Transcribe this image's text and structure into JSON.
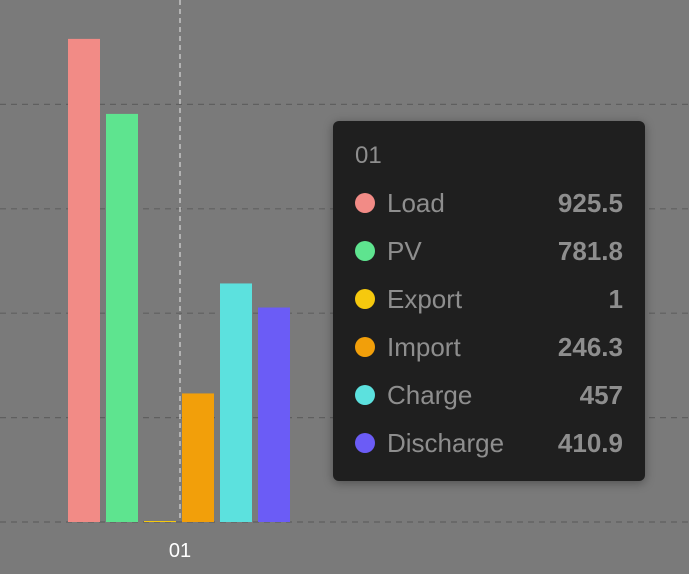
{
  "chart_data": {
    "type": "bar",
    "categories": [
      "01"
    ],
    "series": [
      {
        "name": "Load",
        "color": "#f28b86",
        "values": [
          925.5
        ]
      },
      {
        "name": "PV",
        "color": "#5ee48f",
        "values": [
          781.8
        ]
      },
      {
        "name": "Export",
        "color": "#f6c90e",
        "values": [
          1
        ]
      },
      {
        "name": "Import",
        "color": "#f29f0a",
        "values": [
          246.3
        ]
      },
      {
        "name": "Charge",
        "color": "#5ce1de",
        "values": [
          457
        ]
      },
      {
        "name": "Discharge",
        "color": "#6b5cf6",
        "values": [
          410.9
        ]
      }
    ],
    "ylim": [
      0,
      1000
    ],
    "grid": true,
    "legend": "none"
  },
  "tooltip": {
    "title": "01",
    "rows": [
      {
        "name": "Load",
        "value": "925.5",
        "color": "#f28b86"
      },
      {
        "name": "PV",
        "value": "781.8",
        "color": "#5ee48f"
      },
      {
        "name": "Export",
        "value": "1",
        "color": "#f6c90e"
      },
      {
        "name": "Import",
        "value": "246.3",
        "color": "#f29f0a"
      },
      {
        "name": "Charge",
        "value": "457",
        "color": "#5ce1de"
      },
      {
        "name": "Discharge",
        "value": "410.9",
        "color": "#6b5cf6"
      }
    ]
  }
}
